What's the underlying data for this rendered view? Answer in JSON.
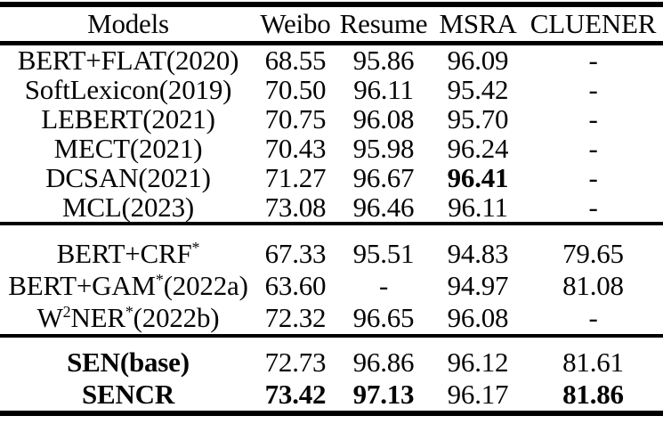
{
  "colors": {
    "ink": "#000000",
    "paper": "#ffffff"
  },
  "table": {
    "header": {
      "columns": [
        "Models",
        "Weibo",
        "Resume",
        "MSRA",
        "CLUENER"
      ]
    },
    "sections": [
      {
        "name": "prior-lexicon-models",
        "rows": [
          {
            "model": "BERT+FLAT(2020)",
            "model_bold": false,
            "values": [
              "68.55",
              "95.86",
              "96.09",
              "-"
            ],
            "bold": [
              false,
              false,
              false,
              false
            ]
          },
          {
            "model": "SoftLexicon(2019)",
            "model_bold": false,
            "values": [
              "70.50",
              "96.11",
              "95.42",
              "-"
            ],
            "bold": [
              false,
              false,
              false,
              false
            ]
          },
          {
            "model": "LEBERT(2021)",
            "model_bold": false,
            "values": [
              "70.75",
              "96.08",
              "95.70",
              "-"
            ],
            "bold": [
              false,
              false,
              false,
              false
            ]
          },
          {
            "model": "MECT(2021)",
            "model_bold": false,
            "values": [
              "70.43",
              "95.98",
              "96.24",
              "-"
            ],
            "bold": [
              false,
              false,
              false,
              false
            ]
          },
          {
            "model": "DCSAN(2021)",
            "model_bold": false,
            "values": [
              "71.27",
              "96.67",
              "96.41",
              "-"
            ],
            "bold": [
              false,
              false,
              true,
              false
            ]
          },
          {
            "model": "MCL(2023)",
            "model_bold": false,
            "values": [
              "73.08",
              "96.46",
              "96.11",
              "-"
            ],
            "bold": [
              false,
              false,
              false,
              false
            ]
          }
        ]
      },
      {
        "name": "bert-baseline-models",
        "rows": [
          {
            "model": "BERT+CRF^{*}",
            "model_bold": false,
            "values": [
              "67.33",
              "95.51",
              "94.83",
              "79.65"
            ],
            "bold": [
              false,
              false,
              false,
              false
            ]
          },
          {
            "model": "BERT+GAM^{*}(2022a)",
            "model_bold": false,
            "values": [
              "63.60",
              "-",
              "94.97",
              "81.08"
            ],
            "bold": [
              false,
              false,
              false,
              false
            ]
          },
          {
            "model": "W^{2}NER^{*}(2022b)",
            "model_bold": false,
            "values": [
              "72.32",
              "96.65",
              "96.08",
              "-"
            ],
            "bold": [
              false,
              false,
              false,
              false
            ]
          }
        ]
      },
      {
        "name": "proposed-models",
        "rows": [
          {
            "model": "SEN(base)",
            "model_bold": true,
            "values": [
              "72.73",
              "96.86",
              "96.12",
              "81.61"
            ],
            "bold": [
              false,
              false,
              false,
              false
            ]
          },
          {
            "model": "SENCR",
            "model_bold": true,
            "values": [
              "73.42",
              "97.13",
              "96.17",
              "81.86"
            ],
            "bold": [
              true,
              true,
              false,
              true
            ]
          }
        ]
      }
    ]
  }
}
